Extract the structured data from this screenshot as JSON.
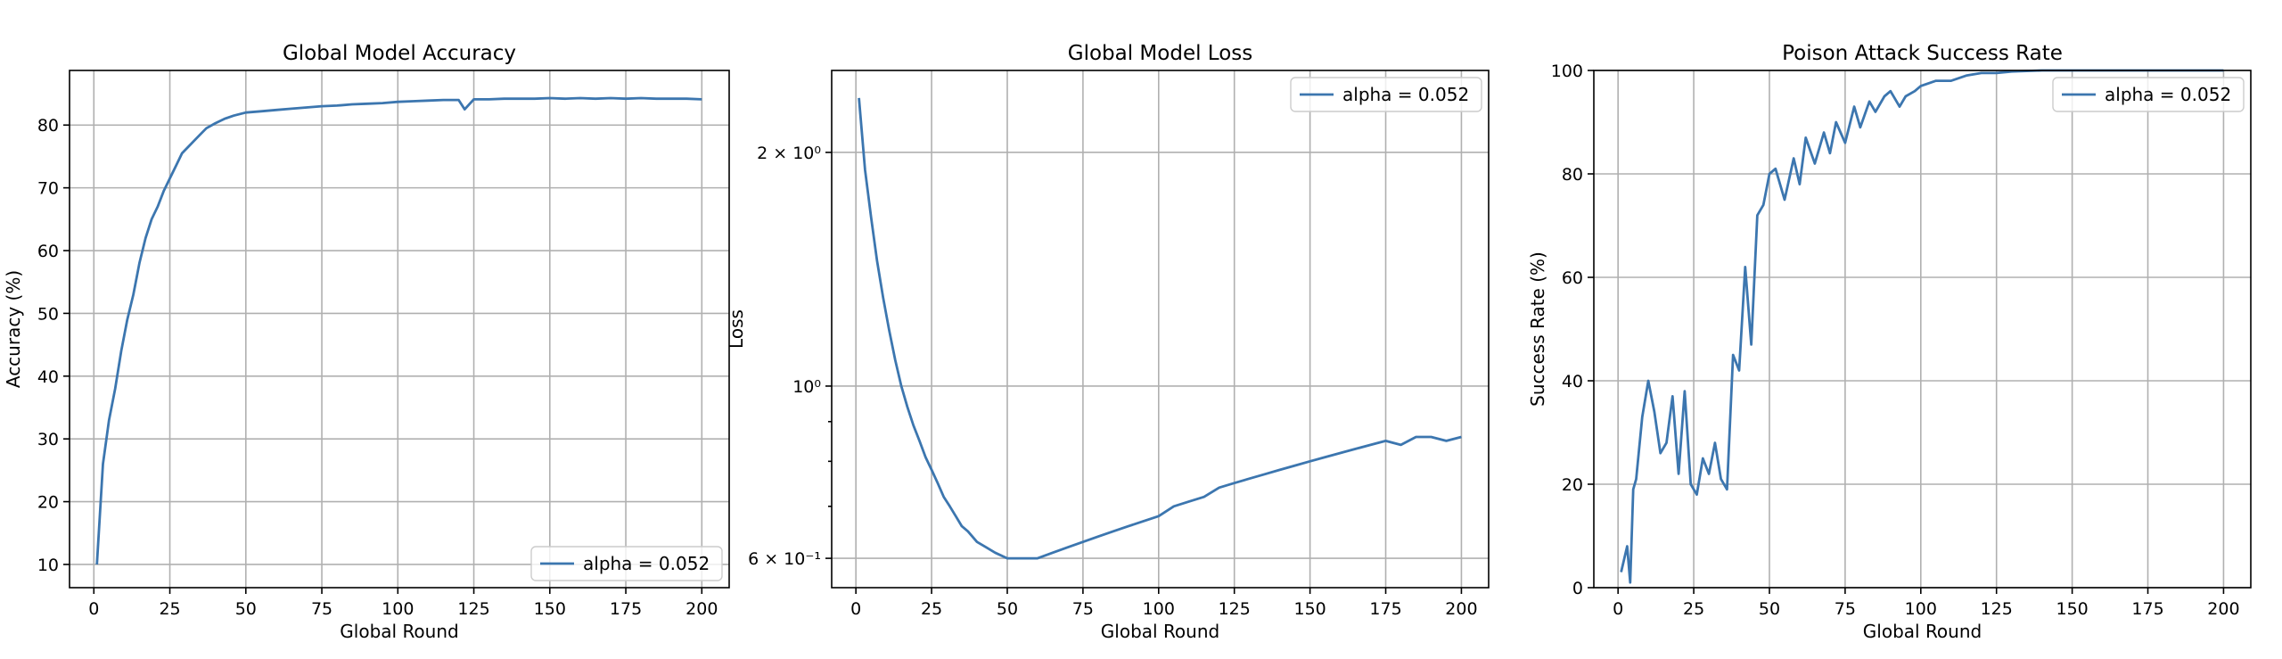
{
  "colors": {
    "series": "#3c76af",
    "grid": "#b0b0b0"
  },
  "chart_data": [
    {
      "type": "line",
      "title": "Global Model Accuracy",
      "xlabel": "Global Round",
      "ylabel": "Accuracy (%)",
      "xlim": [
        -8,
        209
      ],
      "ylim": [
        6.3,
        88.7
      ],
      "yscale": "linear",
      "xticks": [
        0,
        25,
        50,
        75,
        100,
        125,
        150,
        175,
        200
      ],
      "xtick_labels": [
        "0",
        "25",
        "50",
        "75",
        "100",
        "125",
        "150",
        "175",
        "200"
      ],
      "yticks": [
        10,
        20,
        30,
        40,
        50,
        60,
        70,
        80
      ],
      "ytick_labels": [
        "10",
        "20",
        "30",
        "40",
        "50",
        "60",
        "70",
        "80"
      ],
      "grid": true,
      "legend_position": "lower-right",
      "series": [
        {
          "name": "alpha = 0.052",
          "x": [
            1,
            3,
            5,
            7,
            9,
            11,
            13,
            15,
            17,
            19,
            21,
            23,
            25,
            27,
            29,
            31,
            33,
            35,
            37,
            40,
            43,
            46,
            50,
            55,
            60,
            65,
            70,
            75,
            80,
            85,
            90,
            95,
            100,
            105,
            110,
            115,
            120,
            122,
            125,
            130,
            135,
            140,
            145,
            150,
            155,
            160,
            165,
            170,
            175,
            180,
            185,
            190,
            195,
            200
          ],
          "y": [
            10,
            26,
            33,
            38,
            44,
            49,
            53,
            58,
            62,
            65,
            67,
            69.5,
            71.5,
            73.5,
            75.5,
            76.5,
            77.5,
            78.5,
            79.5,
            80.3,
            81,
            81.5,
            82,
            82.2,
            82.4,
            82.6,
            82.8,
            83,
            83.1,
            83.3,
            83.4,
            83.5,
            83.7,
            83.8,
            83.9,
            84,
            84,
            82.5,
            84.1,
            84.1,
            84.2,
            84.2,
            84.2,
            84.3,
            84.2,
            84.3,
            84.2,
            84.3,
            84.2,
            84.3,
            84.2,
            84.2,
            84.2,
            84.1
          ]
        }
      ]
    },
    {
      "type": "line",
      "title": "Global Model Loss",
      "xlabel": "Global Round",
      "ylabel": "Loss",
      "xlim": [
        -8,
        209
      ],
      "ylim": [
        0.55,
        2.55
      ],
      "yscale": "log",
      "xticks": [
        0,
        25,
        50,
        75,
        100,
        125,
        150,
        175,
        200
      ],
      "xtick_labels": [
        "0",
        "25",
        "50",
        "75",
        "100",
        "125",
        "150",
        "175",
        "200"
      ],
      "yticks": [
        0.6,
        1,
        2
      ],
      "ytick_labels": [
        "6 × 10⁻¹",
        "10⁰",
        "2 × 10⁰"
      ],
      "grid": true,
      "legend_position": "upper-right",
      "series": [
        {
          "name": "alpha = 0.052",
          "x": [
            1,
            3,
            5,
            7,
            9,
            11,
            13,
            15,
            17,
            19,
            21,
            23,
            25,
            27,
            29,
            31,
            33,
            35,
            37,
            40,
            43,
            46,
            50,
            55,
            60,
            65,
            70,
            75,
            80,
            85,
            90,
            95,
            100,
            105,
            110,
            115,
            120,
            125,
            130,
            135,
            140,
            145,
            150,
            155,
            160,
            165,
            170,
            175,
            180,
            185,
            190,
            195,
            200
          ],
          "y": [
            2.35,
            1.9,
            1.65,
            1.45,
            1.3,
            1.18,
            1.08,
            1.0,
            0.94,
            0.89,
            0.85,
            0.81,
            0.78,
            0.75,
            0.72,
            0.7,
            0.68,
            0.66,
            0.65,
            0.63,
            0.62,
            0.61,
            0.6,
            0.6,
            0.6,
            0.61,
            0.62,
            0.63,
            0.64,
            0.65,
            0.66,
            0.67,
            0.68,
            0.7,
            0.71,
            0.72,
            0.74,
            0.75,
            0.76,
            0.77,
            0.78,
            0.79,
            0.8,
            0.81,
            0.82,
            0.83,
            0.84,
            0.85,
            0.84,
            0.86,
            0.86,
            0.85,
            0.86
          ]
        }
      ]
    },
    {
      "type": "line",
      "title": "Poison Attack Success Rate",
      "xlabel": "Global Round",
      "ylabel": "Success Rate (%)",
      "xlim": [
        -8,
        209
      ],
      "ylim": [
        0,
        100
      ],
      "yscale": "linear",
      "xticks": [
        0,
        25,
        50,
        75,
        100,
        125,
        150,
        175,
        200
      ],
      "xtick_labels": [
        "0",
        "25",
        "50",
        "75",
        "100",
        "125",
        "150",
        "175",
        "200"
      ],
      "yticks": [
        0,
        20,
        40,
        60,
        80,
        100
      ],
      "ytick_labels": [
        "0",
        "20",
        "40",
        "60",
        "80",
        "100"
      ],
      "grid": true,
      "legend_position": "upper-right",
      "series": [
        {
          "name": "alpha = 0.052",
          "x": [
            1,
            3,
            4,
            5,
            6,
            8,
            10,
            12,
            14,
            16,
            18,
            20,
            22,
            24,
            26,
            28,
            30,
            32,
            34,
            36,
            38,
            40,
            42,
            44,
            46,
            48,
            50,
            52,
            55,
            58,
            60,
            62,
            65,
            68,
            70,
            72,
            75,
            78,
            80,
            83,
            85,
            88,
            90,
            93,
            95,
            98,
            100,
            105,
            110,
            115,
            120,
            125,
            130,
            140,
            150,
            160,
            170,
            180,
            190,
            200
          ],
          "y": [
            3,
            8,
            1,
            19,
            21,
            33,
            40,
            34,
            26,
            28,
            37,
            22,
            38,
            20,
            18,
            25,
            22,
            28,
            21,
            19,
            45,
            42,
            62,
            47,
            72,
            74,
            80,
            81,
            75,
            83,
            78,
            87,
            82,
            88,
            84,
            90,
            86,
            93,
            89,
            94,
            92,
            95,
            96,
            93,
            95,
            96,
            97,
            98,
            98,
            99,
            99.5,
            99.5,
            99.8,
            100,
            100,
            100,
            100,
            100,
            100,
            100
          ]
        }
      ]
    }
  ]
}
